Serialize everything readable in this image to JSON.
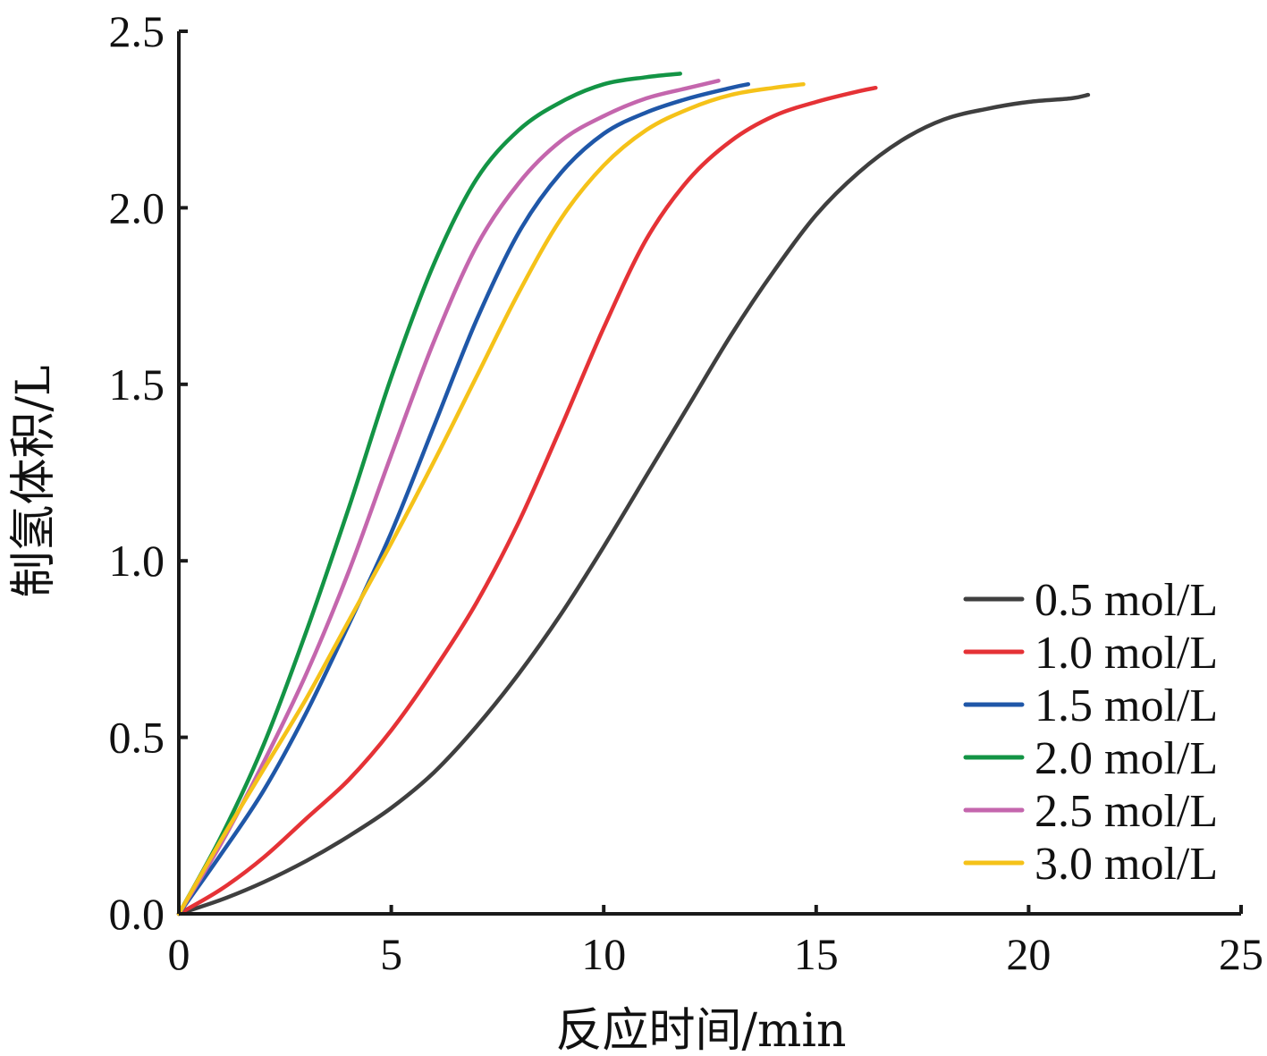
{
  "chart_data": {
    "type": "line",
    "title": "",
    "xlabel": "反应时间/min",
    "ylabel": "制氢体积/L",
    "xlim": [
      0,
      25
    ],
    "ylim": [
      0,
      2.5
    ],
    "xticks": [
      0,
      5,
      10,
      15,
      20,
      25
    ],
    "xtick_labels": [
      "0",
      "5",
      "10",
      "15",
      "20",
      "25"
    ],
    "yticks": [
      0,
      0.5,
      1.0,
      1.5,
      2.0,
      2.5
    ],
    "ytick_labels": [
      "0.0",
      "0.5",
      "1.0",
      "1.5",
      "2.0",
      "2.5"
    ],
    "grid": false,
    "legend_position": "bottom-right",
    "series": [
      {
        "name": "0.5 mol/L",
        "color": "#3f3f3f",
        "x": [
          0,
          1,
          2,
          3,
          4,
          5,
          6,
          7,
          8,
          9,
          10,
          11,
          12,
          13,
          14,
          15,
          16,
          17,
          18,
          19,
          20,
          21,
          21.4
        ],
        "y": [
          0,
          0.04,
          0.09,
          0.15,
          0.22,
          0.3,
          0.4,
          0.53,
          0.68,
          0.85,
          1.04,
          1.24,
          1.44,
          1.64,
          1.82,
          1.98,
          2.1,
          2.19,
          2.25,
          2.28,
          2.3,
          2.31,
          2.32
        ]
      },
      {
        "name": "1.0 mol/L",
        "color": "#e53236",
        "x": [
          0,
          1,
          2,
          3,
          4,
          5,
          6,
          7,
          8,
          9,
          10,
          11,
          12,
          13,
          14,
          15,
          16,
          16.4
        ],
        "y": [
          0,
          0.07,
          0.16,
          0.27,
          0.38,
          0.52,
          0.69,
          0.88,
          1.11,
          1.38,
          1.66,
          1.91,
          2.08,
          2.19,
          2.26,
          2.3,
          2.33,
          2.34
        ]
      },
      {
        "name": "1.5 mol/L",
        "color": "#1f57a8",
        "x": [
          0,
          1,
          2,
          3,
          4,
          5,
          6,
          7,
          8,
          9,
          10,
          11,
          12,
          13,
          13.4
        ],
        "y": [
          0,
          0.17,
          0.35,
          0.57,
          0.82,
          1.08,
          1.38,
          1.68,
          1.93,
          2.1,
          2.21,
          2.27,
          2.31,
          2.34,
          2.35
        ]
      },
      {
        "name": "2.0 mol/L",
        "color": "#139445",
        "x": [
          0,
          1,
          2,
          3,
          4,
          5,
          6,
          7,
          8,
          9,
          10,
          11,
          11.8
        ],
        "y": [
          0,
          0.22,
          0.48,
          0.8,
          1.15,
          1.52,
          1.84,
          2.08,
          2.22,
          2.3,
          2.35,
          2.37,
          2.38
        ]
      },
      {
        "name": "2.5 mol/L",
        "color": "#c466ad",
        "x": [
          0,
          1,
          2,
          3,
          4,
          5,
          6,
          7,
          8,
          9,
          10,
          11,
          12,
          12.7
        ],
        "y": [
          0,
          0.2,
          0.43,
          0.68,
          0.97,
          1.3,
          1.62,
          1.89,
          2.07,
          2.19,
          2.26,
          2.31,
          2.34,
          2.36
        ]
      },
      {
        "name": "3.0 mol/L",
        "color": "#f5c219",
        "x": [
          0,
          1,
          2,
          3,
          4,
          5,
          6,
          7,
          8,
          9,
          10,
          11,
          12,
          13,
          14,
          14.7
        ],
        "y": [
          0,
          0.21,
          0.41,
          0.61,
          0.83,
          1.05,
          1.28,
          1.52,
          1.76,
          1.97,
          2.12,
          2.22,
          2.28,
          2.32,
          2.34,
          2.35
        ]
      }
    ]
  }
}
